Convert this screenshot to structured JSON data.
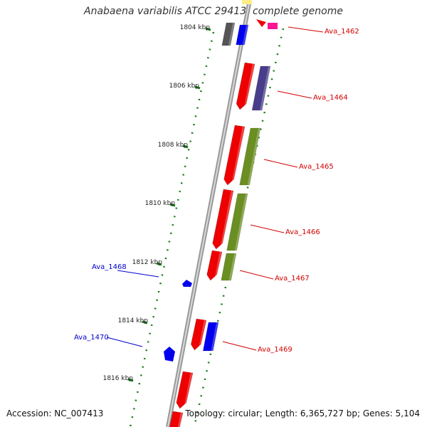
{
  "title": "Anabaena variabilis ATCC 29413, complete genome",
  "accession": "Accession: NC_007413",
  "topology": "Topology: circular; Length: 6,365,727 bp; Genes: 5,104",
  "ticks": [
    {
      "label": "1804 kbp"
    },
    {
      "label": "1806 kbp"
    },
    {
      "label": "1808 kbp"
    },
    {
      "label": "1810 kbp"
    },
    {
      "label": "1812 kbp"
    },
    {
      "label": "1814 kbp"
    },
    {
      "label": "1816 kbp"
    }
  ],
  "gene_labels": [
    {
      "name": "Ava_1462",
      "color": "#d40000"
    },
    {
      "name": "Ava_1464",
      "color": "#d40000"
    },
    {
      "name": "Ava_1465",
      "color": "#d40000"
    },
    {
      "name": "Ava_1466",
      "color": "#d40000"
    },
    {
      "name": "Ava_1467",
      "color": "#d40000"
    },
    {
      "name": "Ava_1468",
      "color": "#0000cc"
    },
    {
      "name": "Ava_1469",
      "color": "#d40000"
    },
    {
      "name": "Ava_1470",
      "color": "#0000cc"
    }
  ],
  "colors": {
    "forward_gene": "#ee0000",
    "reverse_gene": "#0000ee",
    "olive_feature": "#6b8e23",
    "purple_feature": "#483d8b",
    "gray_feature": "#555555",
    "pink_feature": "#ff1493",
    "backbone": "#888888",
    "tick": "#1a7a1a"
  }
}
